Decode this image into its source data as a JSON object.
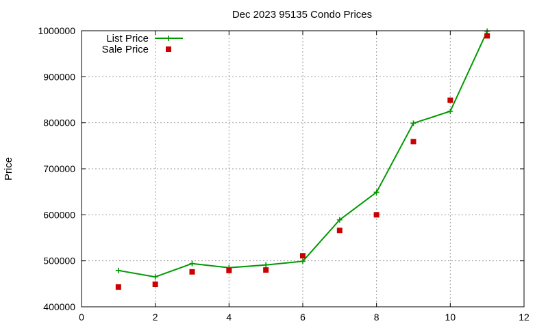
{
  "chart_data": {
    "type": "line",
    "title": "Dec 2023 95135 Condo Prices",
    "xlabel": "",
    "ylabel": "Price",
    "xlim": [
      0,
      12
    ],
    "ylim": [
      400000,
      1000000
    ],
    "x_ticks": [
      0,
      2,
      4,
      6,
      8,
      10,
      12
    ],
    "y_ticks": [
      400000,
      500000,
      600000,
      700000,
      800000,
      900000,
      1000000
    ],
    "grid": true,
    "legend_position": "top-left",
    "series": [
      {
        "name": "List Price",
        "style": "line+plus",
        "color": "#009900",
        "x": [
          1,
          2,
          3,
          4,
          5,
          6,
          7,
          8,
          9,
          10,
          11
        ],
        "values": [
          479000,
          465000,
          494000,
          485000,
          491000,
          499000,
          589000,
          649000,
          799000,
          825000,
          999000
        ]
      },
      {
        "name": "Sale Price",
        "style": "square",
        "color": "#cc0000",
        "x": [
          1,
          2,
          3,
          4,
          5,
          6,
          7,
          8,
          9,
          10,
          11
        ],
        "values": [
          443000,
          449000,
          476000,
          479000,
          480000,
          511000,
          566000,
          600000,
          759000,
          849000,
          989000
        ]
      }
    ]
  }
}
